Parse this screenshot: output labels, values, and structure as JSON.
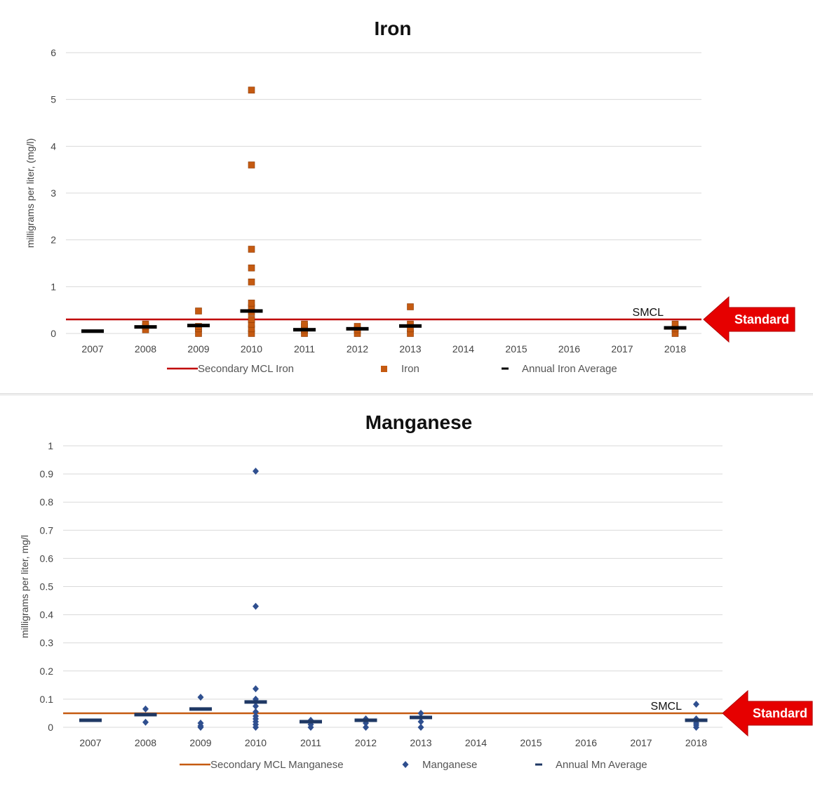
{
  "chart_data": [
    {
      "type": "scatter",
      "title": "Iron",
      "ylabel": "milligrams per liter,  (mg/l)",
      "xlabel": "",
      "categories": [
        "2007",
        "2008",
        "2009",
        "2010",
        "2011",
        "2012",
        "2013",
        "2014",
        "2015",
        "2016",
        "2017",
        "2018"
      ],
      "ylim": [
        0,
        6
      ],
      "yticks": [
        "0",
        "1",
        "2",
        "3",
        "4",
        "5",
        "6"
      ],
      "grid": true,
      "legend_position": "bottom",
      "standard": {
        "name": "Secondary MCL Iron",
        "value": 0.3,
        "label": "SMCL",
        "color": "#c00000"
      },
      "series": [
        {
          "name": "Iron",
          "marker": "square",
          "color": "#c55a11",
          "points": [
            [
              "2008",
              0.08
            ],
            [
              "2008",
              0.15
            ],
            [
              "2008",
              0.2
            ],
            [
              "2009",
              0.0
            ],
            [
              "2009",
              0.1
            ],
            [
              "2009",
              0.15
            ],
            [
              "2009",
              0.48
            ],
            [
              "2010",
              0.0
            ],
            [
              "2010",
              0.1
            ],
            [
              "2010",
              0.2
            ],
            [
              "2010",
              0.3
            ],
            [
              "2010",
              0.45
            ],
            [
              "2010",
              0.55
            ],
            [
              "2010",
              0.65
            ],
            [
              "2010",
              1.1
            ],
            [
              "2010",
              1.4
            ],
            [
              "2010",
              1.8
            ],
            [
              "2010",
              3.6
            ],
            [
              "2010",
              5.2
            ],
            [
              "2011",
              0.0
            ],
            [
              "2011",
              0.08
            ],
            [
              "2011",
              0.15
            ],
            [
              "2011",
              0.2
            ],
            [
              "2012",
              0.0
            ],
            [
              "2012",
              0.08
            ],
            [
              "2012",
              0.15
            ],
            [
              "2013",
              0.0
            ],
            [
              "2013",
              0.1
            ],
            [
              "2013",
              0.2
            ],
            [
              "2013",
              0.57
            ],
            [
              "2018",
              0.0
            ],
            [
              "2018",
              0.1
            ],
            [
              "2018",
              0.2
            ]
          ]
        },
        {
          "name": "Annual Iron Average",
          "marker": "dash",
          "color": "#000000",
          "points": [
            [
              "2007",
              0.05
            ],
            [
              "2008",
              0.14
            ],
            [
              "2009",
              0.17
            ],
            [
              "2010",
              0.48
            ],
            [
              "2011",
              0.08
            ],
            [
              "2012",
              0.1
            ],
            [
              "2013",
              0.16
            ],
            [
              "2018",
              0.12
            ]
          ]
        }
      ],
      "arrow_label": "Standard",
      "arrow_color": "#e60000"
    },
    {
      "type": "scatter",
      "title": "Manganese",
      "ylabel": "milligrams per liter, mg/l",
      "xlabel": "",
      "categories": [
        "2007",
        "2008",
        "2009",
        "2010",
        "2011",
        "2012",
        "2013",
        "2014",
        "2015",
        "2016",
        "2017",
        "2018"
      ],
      "ylim": [
        0,
        1
      ],
      "yticks": [
        "0",
        "0.1",
        "0.2",
        "0.3",
        "0.4",
        "0.5",
        "0.6",
        "0.7",
        "0.8",
        "0.9",
        "1"
      ],
      "grid": true,
      "legend_position": "bottom",
      "standard": {
        "name": "Secondary MCL Manganese",
        "value": 0.05,
        "label": "SMCL",
        "color": "#c55a11"
      },
      "series": [
        {
          "name": "Manganese",
          "marker": "diamond",
          "color": "#2f4f8f",
          "points": [
            [
              "2008",
              0.018
            ],
            [
              "2008",
              0.065
            ],
            [
              "2009",
              0.0
            ],
            [
              "2009",
              0.005
            ],
            [
              "2009",
              0.015
            ],
            [
              "2009",
              0.107
            ],
            [
              "2010",
              0.0
            ],
            [
              "2010",
              0.01
            ],
            [
              "2010",
              0.02
            ],
            [
              "2010",
              0.03
            ],
            [
              "2010",
              0.04
            ],
            [
              "2010",
              0.055
            ],
            [
              "2010",
              0.075
            ],
            [
              "2010",
              0.09
            ],
            [
              "2010",
              0.1
            ],
            [
              "2010",
              0.137
            ],
            [
              "2010",
              0.43
            ],
            [
              "2010",
              0.91
            ],
            [
              "2011",
              0.0
            ],
            [
              "2011",
              0.01
            ],
            [
              "2011",
              0.025
            ],
            [
              "2012",
              0.0
            ],
            [
              "2012",
              0.015
            ],
            [
              "2012",
              0.03
            ],
            [
              "2013",
              0.0
            ],
            [
              "2013",
              0.02
            ],
            [
              "2013",
              0.035
            ],
            [
              "2013",
              0.05
            ],
            [
              "2018",
              0.0
            ],
            [
              "2018",
              0.008
            ],
            [
              "2018",
              0.015
            ],
            [
              "2018",
              0.03
            ],
            [
              "2018",
              0.082
            ]
          ]
        },
        {
          "name": "Annual Mn Average",
          "marker": "dash",
          "color": "#1f3864",
          "points": [
            [
              "2007",
              0.025
            ],
            [
              "2008",
              0.045
            ],
            [
              "2009",
              0.065
            ],
            [
              "2010",
              0.09
            ],
            [
              "2011",
              0.02
            ],
            [
              "2012",
              0.025
            ],
            [
              "2013",
              0.035
            ],
            [
              "2018",
              0.025
            ]
          ]
        }
      ],
      "arrow_label": "Standard",
      "arrow_color": "#e60000"
    }
  ]
}
